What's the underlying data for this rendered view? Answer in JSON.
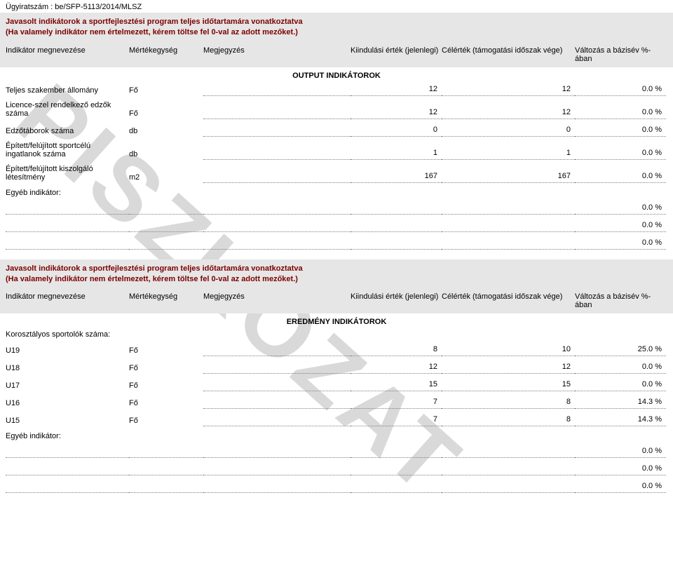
{
  "doc_id": "Ügyiratszám : be/SFP-5113/2014/MLSZ",
  "watermark": "PISZKOZAT",
  "section1": {
    "banner1": "Javasolt indikátorok a sportfejlesztési program teljes időtartamára vonatkoztatva",
    "banner2": "(Ha valamely indikátor nem értelmezett, kérem töltse fel 0-val az adott mezőket.)",
    "headers": {
      "name": "Indikátor megnevezése",
      "unit": "Mértékegység",
      "note": "Megjegyzés",
      "start": "Kiindulási érték (jelenlegi)",
      "target": "Célérték (támogatási időszak vége)",
      "change": "Változás a bázisév %-ában"
    },
    "section_title": "OUTPUT INDIKÁTOROK",
    "rows": [
      {
        "label": "Teljes szakember állomány",
        "unit": "Fő",
        "start": "12",
        "target": "12",
        "change": "0.0 %"
      },
      {
        "label": "Licence-szel rendelkező edzők száma",
        "unit": "Fő",
        "start": "12",
        "target": "12",
        "change": "0.0 %"
      },
      {
        "label": "Edzőtáborok száma",
        "unit": "db",
        "start": "0",
        "target": "0",
        "change": "0.0 %"
      },
      {
        "label": "Épített/felújított sportcélú ingatlanok száma",
        "unit": "db",
        "start": "1",
        "target": "1",
        "change": "0.0 %"
      },
      {
        "label": "Épített/felújított kiszolgáló létesítmény",
        "unit": "m2",
        "start": "167",
        "target": "167",
        "change": "0.0 %"
      }
    ],
    "other_label": "Egyéb indikátor:",
    "other_rows": [
      {
        "change": "0.0 %"
      },
      {
        "change": "0.0 %"
      },
      {
        "change": "0.0 %"
      }
    ]
  },
  "section2": {
    "banner1": "Javasolt indikátorok a sportfejlesztési program teljes időtartamára vonatkoztatva",
    "banner2": "(Ha valamely indikátor nem értelmezett, kérem töltse fel 0-val az adott mezőket.)",
    "headers": {
      "name": "Indikátor megnevezése",
      "unit": "Mértékegység",
      "note": "Megjegyzés",
      "start": "Kiindulási érték (jelenlegi)",
      "target": "Célérték (támogatási időszak vége)",
      "change": "Változás a bázisév %-ában"
    },
    "section_title": "EREDMÉNY INDIKÁTOROK",
    "group_label": "Korosztályos sportolók száma:",
    "rows": [
      {
        "label": "U19",
        "unit": "Fő",
        "start": "8",
        "target": "10",
        "change": "25.0 %"
      },
      {
        "label": "U18",
        "unit": "Fő",
        "start": "12",
        "target": "12",
        "change": "0.0 %"
      },
      {
        "label": "U17",
        "unit": "Fő",
        "start": "15",
        "target": "15",
        "change": "0.0 %"
      },
      {
        "label": "U16",
        "unit": "Fő",
        "start": "7",
        "target": "8",
        "change": "14.3 %"
      },
      {
        "label": "U15",
        "unit": "Fő",
        "start": "7",
        "target": "8",
        "change": "14.3 %"
      }
    ],
    "other_label": "Egyéb indikátor:",
    "other_rows": [
      {
        "change": "0.0 %"
      },
      {
        "change": "0.0 %"
      },
      {
        "change": "0.0 %"
      }
    ]
  }
}
